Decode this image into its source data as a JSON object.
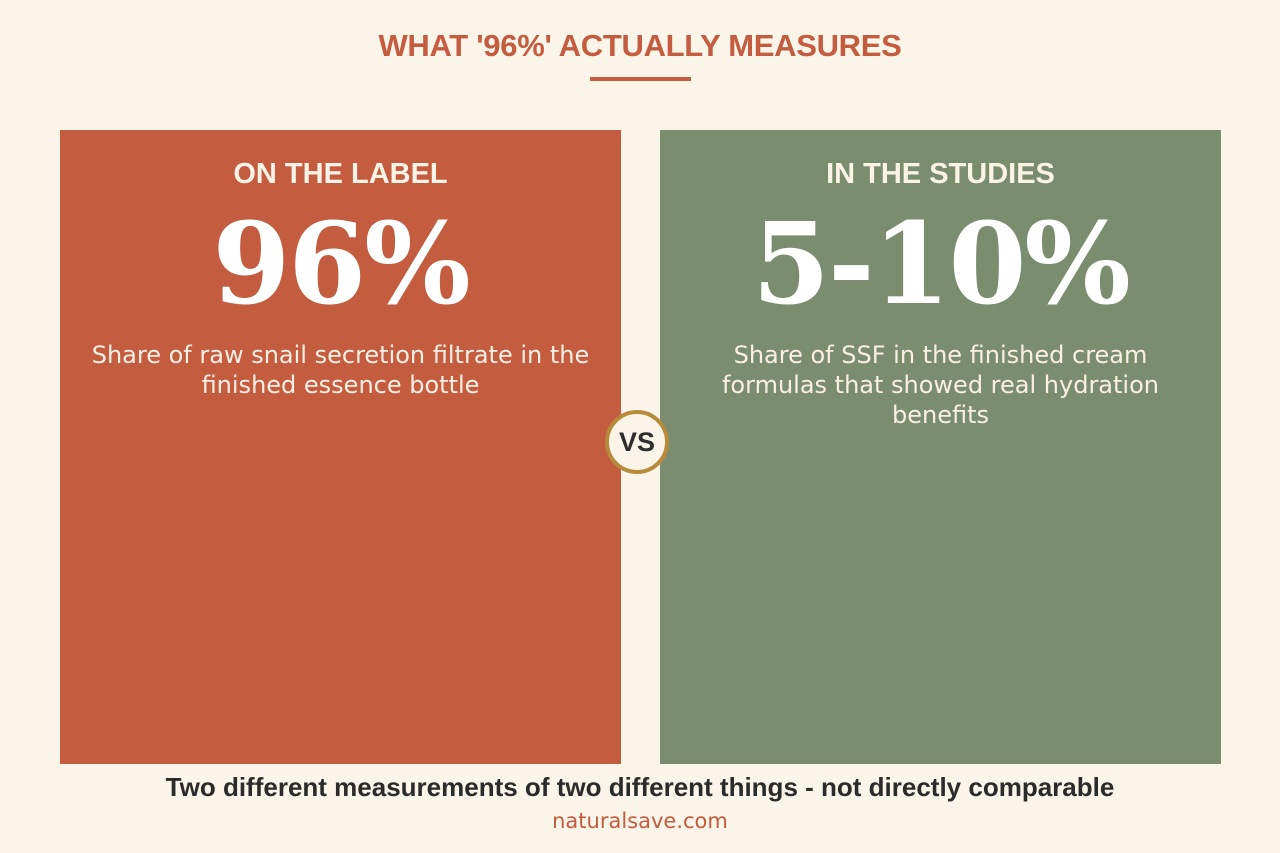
{
  "title": "WHAT '96%' ACTUALLY MEASURES",
  "colors": {
    "background": "#faf4e9",
    "accent": "#c45c3f",
    "left_panel": "#c45c3f",
    "right_panel": "#7b8d6f",
    "badge_border": "#b88a3c",
    "footer_text": "#2b2b2b"
  },
  "left_panel": {
    "heading": "ON THE LABEL",
    "value": "96%",
    "description": "Share of raw snail secretion filtrate in the finished essence bottle"
  },
  "right_panel": {
    "heading": "IN THE STUDIES",
    "value": "5-10%",
    "description": "Share of SSF in the finished cream formulas that showed real hydration benefits"
  },
  "vs_label": "VS",
  "footer": {
    "note": "Two different measurements of two different things - not directly comparable",
    "site": "naturalsave.com"
  }
}
